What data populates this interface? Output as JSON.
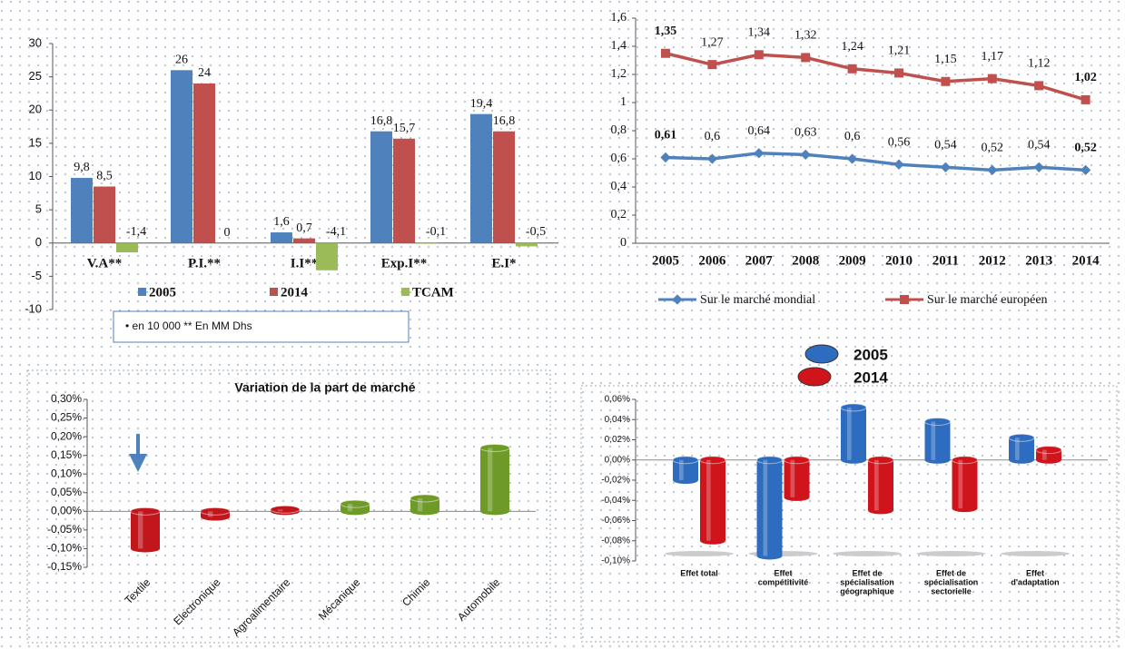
{
  "chart_data": [
    {
      "type": "bar",
      "categories": [
        "V.A**",
        "P.I.**",
        "I.I**",
        "Exp.I**",
        "E.I*"
      ],
      "series": [
        {
          "name": "2005",
          "color": "#4f81bd",
          "values": [
            9.8,
            26,
            1.6,
            16.8,
            19.4
          ],
          "value_labels": [
            "9,8",
            "26",
            "1,6",
            "16,8",
            "19,4"
          ]
        },
        {
          "name": "2014",
          "color": "#c0504d",
          "values": [
            8.5,
            24,
            0.7,
            15.7,
            16.8
          ],
          "value_labels": [
            "8,5",
            "24",
            "0,7",
            "15,7",
            "16,8"
          ]
        },
        {
          "name": "TCAM",
          "color": "#9bbb59",
          "values": [
            -1.4,
            0,
            -4.1,
            -0.1,
            -0.5
          ],
          "value_labels": [
            "-1,4",
            "0",
            "-4,1",
            "-0,1",
            "-0,5"
          ]
        }
      ],
      "ylim": [
        -10,
        30
      ],
      "yticks": [
        -10,
        -5,
        0,
        5,
        10,
        15,
        20,
        25,
        30
      ],
      "note": "•  en 10 000  ** En MM  Dhs"
    },
    {
      "type": "line",
      "categories": [
        "2005",
        "2006",
        "2007",
        "2008",
        "2009",
        "2010",
        "2011",
        "2012",
        "2013",
        "2014"
      ],
      "series": [
        {
          "name": "Sur le marché mondial",
          "color": "#4f81bd",
          "values": [
            0.61,
            0.6,
            0.64,
            0.63,
            0.6,
            0.56,
            0.54,
            0.52,
            0.54,
            0.52
          ],
          "value_labels": [
            "0,61",
            "0,6",
            "0,64",
            "0,63",
            "0,6",
            "0,56",
            "0,54",
            "0,52",
            "0,54",
            "0,52"
          ]
        },
        {
          "name": "Sur le marché européen",
          "color": "#c0504d",
          "values": [
            1.35,
            1.27,
            1.34,
            1.32,
            1.24,
            1.21,
            1.15,
            1.17,
            1.12,
            1.02
          ],
          "value_labels": [
            "1,35",
            "1,27",
            "1,34",
            "1,32",
            "1,24",
            "1,21",
            "1,15",
            "1,17",
            "1,12",
            "1,02"
          ]
        }
      ],
      "ylim": [
        0,
        1.6
      ],
      "yticks": [
        0,
        {
          "value": 0.2,
          "label": "0,2"
        },
        {
          "value": 0.4,
          "label": "0,4"
        },
        {
          "value": 0.6,
          "label": "0,6"
        },
        {
          "value": 0.8,
          "label": "0,8"
        },
        1,
        {
          "value": 1.2,
          "label": "1,2"
        },
        {
          "value": 1.4,
          "label": "1,4"
        },
        {
          "value": 1.6,
          "label": "1,6"
        }
      ]
    },
    {
      "type": "cylinder",
      "title": "Variation de la part de marché",
      "categories": [
        "Textile",
        "Electronique",
        "Agroalimentaire",
        "Mécanique",
        "Chimie",
        "Automobile"
      ],
      "values": [
        -0.1,
        -0.015,
        0.005,
        0.02,
        0.035,
        0.17
      ],
      "colors": [
        "#c0161c",
        "#c0161c",
        "#c0161c",
        "#6e9a28",
        "#6e9a28",
        "#6e9a28"
      ],
      "ylim": [
        -0.15,
        0.3
      ],
      "yticks": [
        {
          "value": -0.15,
          "label": "-0,15%"
        },
        {
          "value": -0.1,
          "label": "-0,10%"
        },
        {
          "value": -0.05,
          "label": "-0,05%"
        },
        {
          "value": 0,
          "label": "0,00%"
        },
        {
          "value": 0.05,
          "label": "0,05%"
        },
        {
          "value": 0.1,
          "label": "0,10%"
        },
        {
          "value": 0.15,
          "label": "0,15%"
        },
        {
          "value": 0.2,
          "label": "0,20%"
        },
        {
          "value": 0.25,
          "label": "0,25%"
        },
        {
          "value": 0.3,
          "label": "0,30%"
        }
      ]
    },
    {
      "type": "cylinder",
      "categories": [
        [
          "Effet total"
        ],
        [
          "Effet",
          "compétitivité"
        ],
        [
          "Effet de",
          "spécialisation",
          "géographique"
        ],
        [
          "Effet de",
          "spécialisation",
          "sectorielle"
        ],
        [
          "Effet",
          "d'adaptation"
        ]
      ],
      "series": [
        {
          "name": "2005",
          "color": "#2e6cc0",
          "values": [
            -0.02,
            -0.095,
            0.052,
            0.038,
            0.022
          ]
        },
        {
          "name": "2014",
          "color": "#d0141c",
          "values": [
            -0.08,
            -0.037,
            -0.05,
            -0.048,
            0.01
          ]
        }
      ],
      "ylim": [
        -0.1,
        0.06
      ],
      "yticks": [
        {
          "value": -0.1,
          "label": "-0,10%"
        },
        {
          "value": -0.08,
          "label": "-0,08%"
        },
        {
          "value": -0.06,
          "label": "-0,06%"
        },
        {
          "value": -0.04,
          "label": "-0,04%"
        },
        {
          "value": -0.02,
          "label": "-0,02%"
        },
        {
          "value": 0,
          "label": "0,00%"
        },
        {
          "value": 0.02,
          "label": "0,02%"
        },
        {
          "value": 0.04,
          "label": "0,04%"
        },
        {
          "value": 0.06,
          "label": "0,06%"
        }
      ]
    }
  ]
}
